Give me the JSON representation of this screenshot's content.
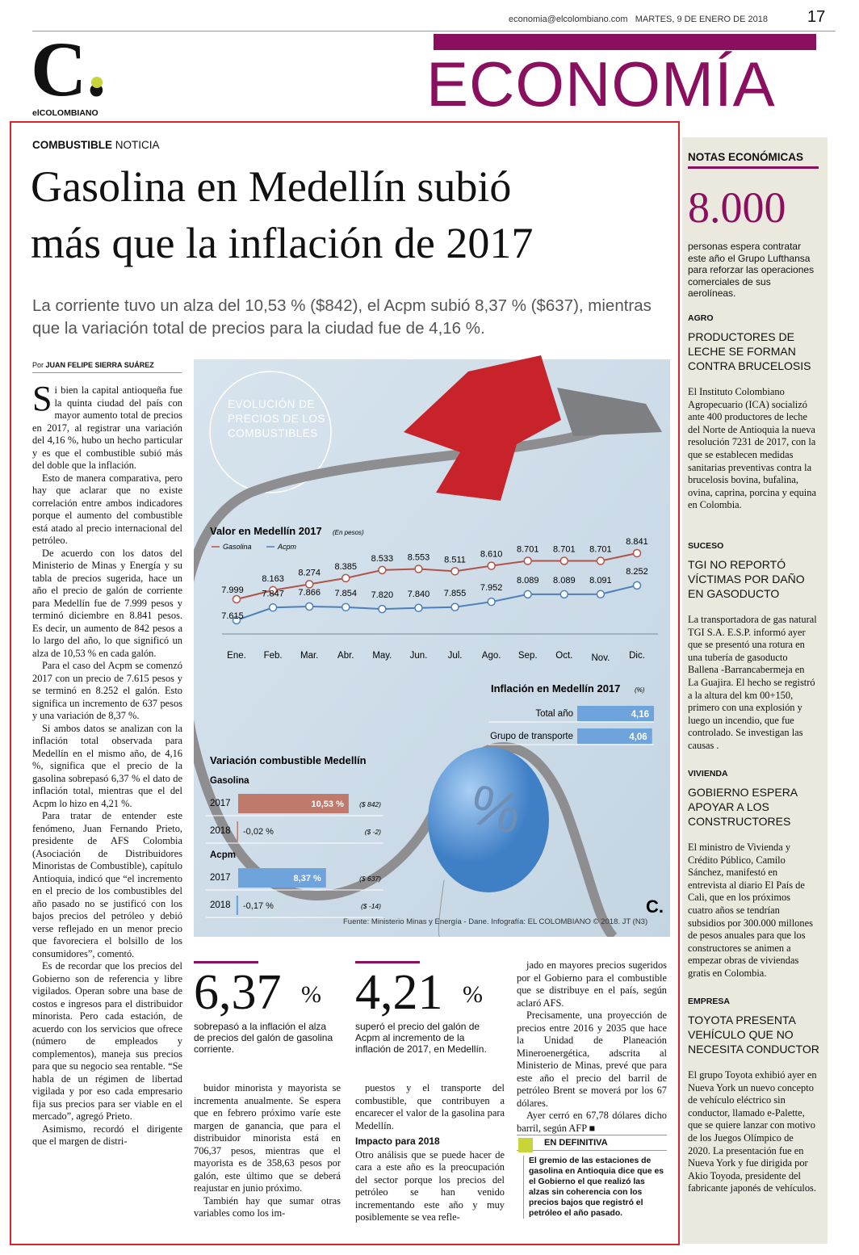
{
  "header": {
    "email": "economia@elcolombiano.com",
    "date": "MARTES, 9 DE ENERO DE 2018",
    "page": "17",
    "logo": "C.",
    "brand": "elCOLOMBIANO",
    "section": "ECONOMÍA"
  },
  "article": {
    "kicker": "COMBUSTIBLE",
    "kicker_type": "NOTICIA",
    "headline": [
      "Gasolina en Medellín subió",
      "más que la inflación de 2017"
    ],
    "deck": "La corriente tuvo un alza del 10,53 % ($842), el Acpm subió 8,37 % ($637), mientras que la variación total de precios para la ciudad fue de 4,16 %.",
    "byline_prefix": "Por",
    "byline": "JUAN FELIPE SIERRA SUÁREZ",
    "col1": [
      "Si bien la capital antioqueña fue la quinta ciudad del país con mayor aumento total de precios en 2017, al registrar una variación del 4,16 %, hubo un hecho particular y es que el combustible subió más del doble que la inflación.",
      "Esto de manera comparativa, pero hay que aclarar que no existe correlación entre ambos indicadores porque el aumento del combustible está atado al precio internacional del petróleo.",
      "De acuerdo con los datos del Ministerio de Minas y Energía y su tabla de precios sugerida, hace un año el precio de galón de corriente para Medellín fue de 7.999 pesos y terminó diciembre en 8.841 pesos. Es decir, un aumento de 842 pesos a lo largo del año, lo que significó un alza de 10,53 % en cada galón.",
      "Para el caso del Acpm se comenzó 2017 con un precio de 7.615 pesos y se terminó en 8.252 el galón. Esto significa un incremento de 637 pesos y una variación de 8,37 %.",
      "Si ambos datos se analizan con la inflación total observada para Medellín en el mismo año, de 4,16 %, significa que el precio de la gasolina sobrepasó 6,37 % el dato de inflación total, mientras que el del Acpm lo hizo en 4,21 %.",
      "Para tratar de entender este fenómeno, Juan Fernando Prieto, presidente de AFS Colombia (Asociación de Distribuidores Minoristas de Combustible), capítulo Antioquia, indicó que “el incremento en el precio de los combustibles del año pasado no se justificó con los bajos precios del petróleo y debió verse reflejado en un menor precio que favoreciera el bolsillo de los consumidores”, comentó.",
      "Es de recordar que los precios del Gobierno son de referencia y libre vigilados. Operan sobre una base de costos e ingresos para el distribuidor minorista. Pero cada estación, de acuerdo con los servicios que ofrece (número de empleados y complementos), maneja sus precios para que su negocio sea rentable. “Se habla de un régimen de libertad vigilada y por eso cada empresario fija sus precios para ser viable en el mercado”, agregó Prieto.",
      "Asimismo, recordó el dirigente que el margen de distri-"
    ],
    "col2": [
      "buidor minorista y mayorista se incrementa anualmente. Se espera que en febrero próximo varíe este margen de ganancia, que para el distribuidor minorista está en 706,37 pesos, mientras que el mayorista es de 358,63 pesos por galón, este último que se deberá reajustar en junio próximo.",
      "También hay que sumar otras variables como los im-"
    ],
    "col3": [
      "puestos y el transporte del combustible, que contribuyen a encarecer el valor de la gasolina para Medellín."
    ],
    "subhead": "Impacto para 2018",
    "col3b": [
      "Otro análisis que se puede hacer de cara a este año es la preocupación del sector porque los precios del petróleo se han venido incrementando este año y muy posiblemente se vea refle-"
    ],
    "col4": [
      "jado en mayores precios sugeridos por el Gobierno para el combustible que se distribuye en el país, según aclaró AFS.",
      "Precisamente, una proyección de precios entre 2016 y 2035 que hace la Unidad de Planeación Mineroenergética, adscrita al Ministerio de Minas, prevé que para este año el precio del barril de petróleo Brent se moverá por los 67 dólares.",
      "Ayer cerró en 67,78 dólares dicho barril, según AFP ■"
    ],
    "stats": [
      {
        "value": "6,37",
        "unit": "%",
        "text": "sobrepasó a la inflación el alza de precios del galón de gasolina corriente."
      },
      {
        "value": "4,21",
        "unit": "%",
        "text": "superó el precio del galón de Acpm al incremento de la inflación de 2017, en Medellín."
      }
    ],
    "summary": {
      "title": "EN DEFINITIVA",
      "text": "El gremio de las estaciones de gasolina en Antioquia dice que es el Gobierno el que realizó las alzas sin coherencia con los precios bajos que registró el petróleo el año pasado."
    }
  },
  "infographic": {
    "title": "EVOLUCIÓN DE PRECIOS DE LOS COMBUSTIBLES",
    "balloon": "%",
    "logo": "C.",
    "line_chart": {
      "title": "Valor en Medellín 2017",
      "unit_note": "(En pesos)",
      "categories": [
        "Ene.",
        "Feb.",
        "Mar.",
        "Abr.",
        "May.",
        "Jun.",
        "Jul.",
        "Ago.",
        "Sep.",
        "Oct.",
        "Nov.",
        "Dic."
      ],
      "series": [
        {
          "name": "Gasolina",
          "color": "#b0544a",
          "values": [
            7999,
            8163,
            8274,
            8385,
            8533,
            8553,
            8511,
            8610,
            8701,
            8701,
            8701,
            8841
          ],
          "value_labels": [
            "7.999",
            "8.163",
            "8.274",
            "8.385",
            "8.533",
            "8.553",
            "8.511",
            "8.610",
            "8.701",
            "8.701",
            "8.701",
            "8.841"
          ]
        },
        {
          "name": "Acpm",
          "color": "#4d7fb8",
          "values": [
            7615,
            7847,
            7866,
            7854,
            7820,
            7840,
            7855,
            7952,
            8089,
            8089,
            8091,
            8252
          ],
          "value_labels": [
            "7.615",
            "7.847",
            "7.866",
            "7.854",
            "7.820",
            "7.840",
            "7.855",
            "7.952",
            "8.089",
            "8.089",
            "8.091",
            "8.252"
          ]
        }
      ]
    },
    "inflation": {
      "title": "Inflación en Medellín 2017",
      "unit_note": "(%)",
      "color": "#6fa3dc",
      "rows": [
        {
          "label": "Total año",
          "value": 4.16,
          "value_label": "4,16"
        },
        {
          "label": "Grupo de transporte",
          "value": 4.06,
          "value_label": "4,06"
        }
      ]
    },
    "variation": {
      "title": "Variación combustible Medellín",
      "groups": [
        {
          "name": "Gasolina",
          "color": "#c07a6c",
          "rows": [
            {
              "year": "2017",
              "value": 10.53,
              "value_label": "10,53 %",
              "amount": 842,
              "amount_label": "($ 842)"
            },
            {
              "year": "2018",
              "value": -0.02,
              "value_label": "-0,02 %",
              "amount": -2,
              "amount_label": "($ -2)"
            }
          ]
        },
        {
          "name": "Acpm",
          "color": "#6fa3dc",
          "rows": [
            {
              "year": "2017",
              "value": 8.37,
              "value_label": "8,37 %",
              "amount": 637,
              "amount_label": "($ 637)"
            },
            {
              "year": "2018",
              "value": -0.17,
              "value_label": "-0,17 %",
              "amount": -14,
              "amount_label": "($ -14)"
            }
          ]
        }
      ]
    },
    "source": "Fuente: Ministerio Minas y Energía - Dane. Infografía: EL COLOMBIANO © 2018. JT (N3)"
  },
  "sidebar": {
    "title": "NOTAS ECONÓMICAS",
    "figure": "8.000",
    "figure_text": "personas espera contratar este año el Grupo Lufthansa para reforzar las operaciones comerciales de sus aerolíneas.",
    "items": [
      {
        "tag": "AGRO",
        "headline": "PRODUCTORES DE LECHE SE FORMAN CONTRA BRUCELOSIS",
        "text": "El Instituto Colombiano Agropecuario (ICA) socializó ante 400 productores de leche del Norte de Antioquia la nueva resolución 7231 de 2017, con la que se establecen medidas sanitarias preventivas contra la brucelosis bovina, bufalina, ovina, caprina, porcina y equina en Colombia."
      },
      {
        "tag": "SUCESO",
        "headline": "TGI NO REPORTÓ VÍCTIMAS POR DAÑO EN GASODUCTO",
        "text": "La transportadora de gas natural TGI S.A. E.S.P. informó ayer que se presentó una rotura en una tubería de gasoducto Ballena -Barrancabermeja en La Guajira. El hecho se registró a la altura del km 00+150, primero con una explosión y luego un incendio, que fue controlado. Se investigan las causas ."
      },
      {
        "tag": "VIVIENDA",
        "headline": "GOBIERNO ESPERA APOYAR A LOS CONSTRUCTORES",
        "text": "El ministro de Vivienda y Crédito Público, Camilo Sánchez, manifestó en entrevista al diario El País de Cali, que en los próximos cuatro años se tendrían subsidios por 300.000 millones de pesos anuales para que los constructores se animen a empezar obras de viviendas gratis en Colombia."
      },
      {
        "tag": "EMPRESA",
        "headline": "TOYOTA PRESENTA VEHÍCULO QUE NO NECESITA CONDUCTOR",
        "text": "El grupo Toyota exhibió ayer en Nueva York un nuevo concepto de vehículo eléctrico sin conductor, llamado e-Palette, que se quiere lanzar con motivo de los Juegos Olímpico de 2020. La presentación fue en Nueva York y fue dirigida por Akio Toyoda, presidente del fabricante japonés de vehículos."
      }
    ]
  }
}
